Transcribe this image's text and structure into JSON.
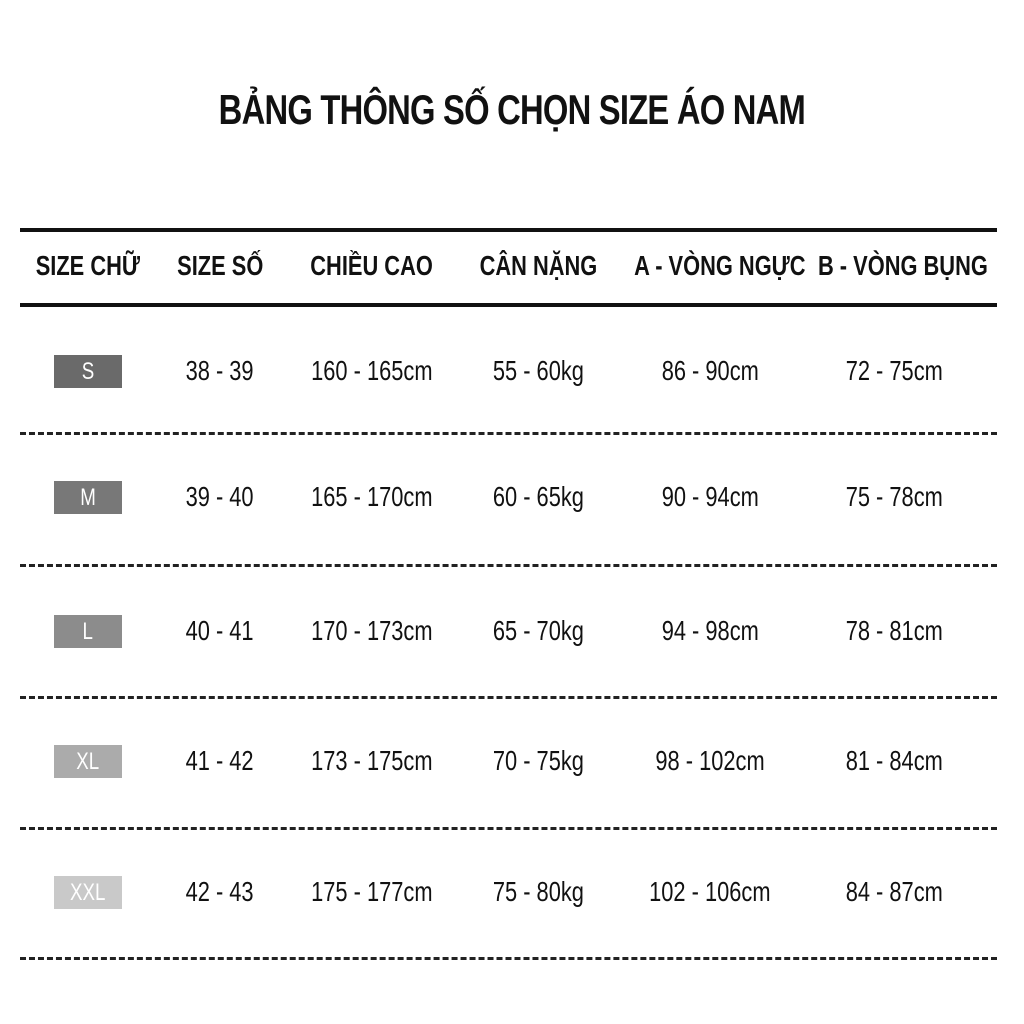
{
  "title": "BẢNG THÔNG SỐ CHỌN SIZE ÁO NAM",
  "headers": [
    "SIZE CHỮ",
    "SIZE SỐ",
    "CHIỀU CAO",
    "CÂN NẶNG",
    "A - VÒNG NGỰC",
    "B - VÒNG BỤNG"
  ],
  "rows": [
    {
      "size": "S",
      "badge_color": "#6a6a6a",
      "cells": [
        "38 - 39",
        "160 - 165cm",
        "55 - 60kg",
        "86 - 90cm",
        "72 - 75cm"
      ]
    },
    {
      "size": "M",
      "badge_color": "#787878",
      "cells": [
        "39 - 40",
        "165 - 170cm",
        "60 - 65kg",
        "90 - 94cm",
        "75 - 78cm"
      ]
    },
    {
      "size": "L",
      "badge_color": "#8c8c8c",
      "cells": [
        "40 - 41",
        "170 - 173cm",
        "65 - 70kg",
        "94 - 98cm",
        "78 - 81cm"
      ]
    },
    {
      "size": "XL",
      "badge_color": "#ababab",
      "cells": [
        "41 - 42",
        "173 - 175cm",
        "70 - 75kg",
        "98 - 102cm",
        "81 - 84cm"
      ]
    },
    {
      "size": "XXL",
      "badge_color": "#c9c9c9",
      "cells": [
        "42 - 43",
        "175 - 177cm",
        "75 - 80kg",
        "102 - 106cm",
        "84 - 87cm"
      ]
    }
  ]
}
